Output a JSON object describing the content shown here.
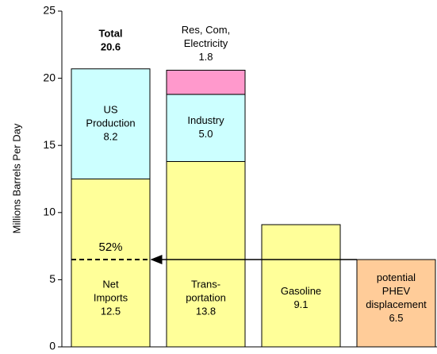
{
  "chart_data": {
    "type": "stacked_bar",
    "ylabel": "Millions Barrels Per Day",
    "ylim": [
      0,
      25
    ],
    "yticks": [
      0,
      5,
      10,
      15,
      20,
      25
    ],
    "bars": [
      {
        "total": {
          "label": "Total",
          "value": 20.6
        },
        "annotation": "52%",
        "segments": [
          {
            "name": [
              "Net",
              "Imports"
            ],
            "value": 12.5,
            "color": "#ffff99"
          },
          {
            "name": [
              "US",
              "Production"
            ],
            "value": 8.2,
            "color": "#ccffff"
          }
        ]
      },
      {
        "segments": [
          {
            "name": [
              "Trans-",
              "portation"
            ],
            "value": 13.8,
            "color": "#ffff99"
          },
          {
            "name": [
              "Industry"
            ],
            "value": 5,
            "value_label": "5.0",
            "color": "#ccffff"
          },
          {
            "name": [
              "Res, Com,",
              "Electricity"
            ],
            "value": 1.8,
            "color": "#ff99cc",
            "label_position": "above"
          }
        ]
      },
      {
        "segments": [
          {
            "name": [
              "Gasoline"
            ],
            "value": 9.1,
            "color": "#ffff99"
          }
        ]
      },
      {
        "segments": [
          {
            "name": [
              "potential",
              "PHEV",
              "displacement"
            ],
            "value": 6.5,
            "color": "#ffcc99"
          }
        ]
      }
    ]
  }
}
